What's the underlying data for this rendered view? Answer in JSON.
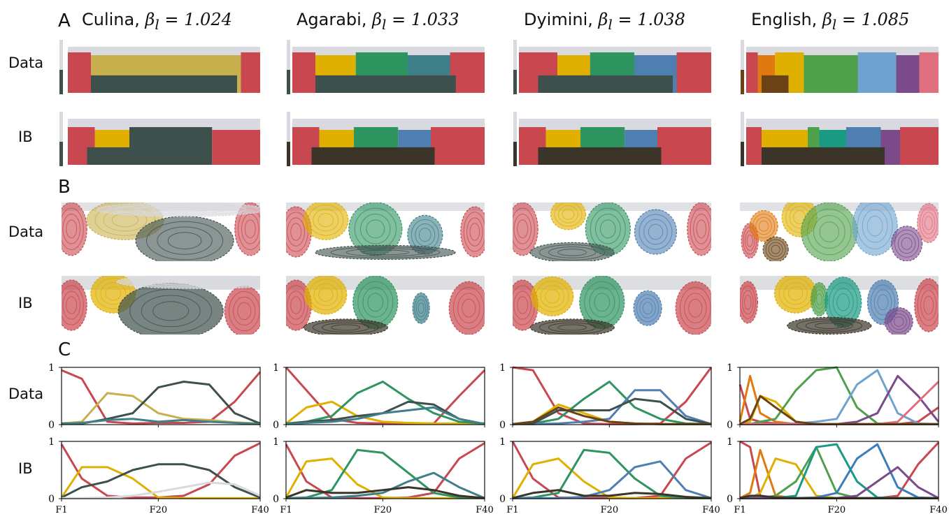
{
  "panel_letters": [
    "A",
    "B",
    "C"
  ],
  "row_labels": {
    "data": "Data",
    "ib": "IB"
  },
  "languages": [
    {
      "name": "Culina",
      "beta_symbol": "β",
      "beta_sub": "l",
      "beta_value": "1.024"
    },
    {
      "name": "Agarabi",
      "beta_symbol": "β",
      "beta_sub": "l",
      "beta_value": "1.033"
    },
    {
      "name": "Dyimini",
      "beta_symbol": "β",
      "beta_sub": "l",
      "beta_value": "1.038"
    },
    {
      "name": "English",
      "beta_symbol": "β",
      "beta_sub": "l",
      "beta_value": "1.085"
    }
  ],
  "colors": {
    "red": "#c9484f",
    "yellow": "#e0b000",
    "olive": "#c9b04f",
    "darkslate": "#3e504c",
    "green": "#2e9460",
    "teal": "#3f7f8a",
    "blue": "#4f7fb0",
    "lightblue": "#6ea3cf",
    "orange": "#e07a10",
    "brown": "#6b4215",
    "purple": "#7a4a8a",
    "pink": "#e07080",
    "grey": "#d8dadf",
    "darkbrown": "#3a3528",
    "salmon": "#f5b49a",
    "vgreen": "#4fa04a",
    "tealb": "#1a9a82"
  },
  "chart_data": [
    {
      "type": "line",
      "language": "Culina",
      "row": "Data",
      "x": [
        1,
        5,
        10,
        15,
        20,
        25,
        30,
        35,
        40
      ],
      "xticks": [
        "F1",
        "F20",
        "F40"
      ],
      "yticks": [
        "0",
        "1"
      ],
      "ylim": [
        0,
        1
      ],
      "series": [
        {
          "color": "#c9484f",
          "values": [
            0.95,
            0.8,
            0.05,
            0.02,
            0.03,
            0.03,
            0.05,
            0.4,
            0.92
          ]
        },
        {
          "color": "#c9b04f",
          "values": [
            0.02,
            0.05,
            0.55,
            0.5,
            0.2,
            0.1,
            0.08,
            0.04,
            0.02
          ]
        },
        {
          "color": "#3e504c",
          "values": [
            0.02,
            0.02,
            0.1,
            0.2,
            0.65,
            0.75,
            0.7,
            0.2,
            0.02
          ]
        },
        {
          "color": "#3f7f8a",
          "values": [
            0.01,
            0.03,
            0.08,
            0.1,
            0.05,
            0.08,
            0.05,
            0.03,
            0.01
          ]
        }
      ]
    },
    {
      "type": "line",
      "language": "Culina",
      "row": "IB",
      "x": [
        1,
        5,
        10,
        15,
        20,
        25,
        30,
        35,
        40
      ],
      "xticks": [
        "F1",
        "F20",
        "F40"
      ],
      "yticks": [
        "0",
        "1"
      ],
      "ylim": [
        0,
        1
      ],
      "series": [
        {
          "color": "#c9484f",
          "values": [
            0.95,
            0.35,
            0.05,
            0.02,
            0.02,
            0.05,
            0.25,
            0.75,
            0.97
          ]
        },
        {
          "color": "#e0b000",
          "values": [
            0.02,
            0.55,
            0.55,
            0.35,
            0.02,
            0.01,
            0.01,
            0.01,
            0.01
          ]
        },
        {
          "color": "#3e504c",
          "values": [
            0.02,
            0.2,
            0.3,
            0.5,
            0.6,
            0.6,
            0.5,
            0.2,
            0.02
          ]
        },
        {
          "color": "#d8dadf",
          "values": [
            0.01,
            0.01,
            0.02,
            0.05,
            0.12,
            0.2,
            0.28,
            0.25,
            0.05
          ]
        }
      ]
    },
    {
      "type": "line",
      "language": "Agarabi",
      "row": "Data",
      "x": [
        1,
        5,
        10,
        15,
        20,
        25,
        30,
        35,
        40
      ],
      "xticks": [
        "F1",
        "F20",
        "F40"
      ],
      "yticks": [
        "0",
        "1"
      ],
      "ylim": [
        0,
        1
      ],
      "series": [
        {
          "color": "#c9484f",
          "values": [
            1.0,
            0.6,
            0.1,
            0.03,
            0.02,
            0.02,
            0.02,
            0.5,
            0.95
          ]
        },
        {
          "color": "#e0b000",
          "values": [
            0.02,
            0.3,
            0.4,
            0.15,
            0.05,
            0.03,
            0.02,
            0.02,
            0.02
          ]
        },
        {
          "color": "#2e9460",
          "values": [
            0.02,
            0.05,
            0.15,
            0.55,
            0.75,
            0.45,
            0.2,
            0.05,
            0.02
          ]
        },
        {
          "color": "#3e504c",
          "values": [
            0.01,
            0.05,
            0.08,
            0.15,
            0.2,
            0.4,
            0.35,
            0.1,
            0.01
          ]
        },
        {
          "color": "#3f7f8a",
          "values": [
            0.01,
            0.03,
            0.05,
            0.1,
            0.2,
            0.25,
            0.3,
            0.1,
            0.01
          ]
        }
      ]
    },
    {
      "type": "line",
      "language": "Agarabi",
      "row": "IB",
      "x": [
        1,
        5,
        10,
        15,
        20,
        25,
        30,
        35,
        40
      ],
      "xticks": [
        "F1",
        "F20",
        "F40"
      ],
      "yticks": [
        "0",
        "1"
      ],
      "ylim": [
        0,
        1
      ],
      "series": [
        {
          "color": "#c9484f",
          "values": [
            0.95,
            0.3,
            0.02,
            0.01,
            0.01,
            0.02,
            0.1,
            0.7,
            0.97
          ]
        },
        {
          "color": "#e0b000",
          "values": [
            0.02,
            0.65,
            0.7,
            0.25,
            0.02,
            0.01,
            0.01,
            0.01,
            0.01
          ]
        },
        {
          "color": "#2e9460",
          "values": [
            0.01,
            0.02,
            0.15,
            0.85,
            0.8,
            0.45,
            0.1,
            0.02,
            0.01
          ]
        },
        {
          "color": "#3f7f8a",
          "values": [
            0.01,
            0.01,
            0.02,
            0.05,
            0.1,
            0.3,
            0.45,
            0.2,
            0.01
          ]
        },
        {
          "color": "#3a3528",
          "values": [
            0.02,
            0.15,
            0.1,
            0.1,
            0.15,
            0.2,
            0.15,
            0.05,
            0.01
          ]
        }
      ]
    },
    {
      "type": "line",
      "language": "Dyimini",
      "row": "Data",
      "x": [
        1,
        5,
        10,
        15,
        20,
        25,
        30,
        35,
        40
      ],
      "xticks": [
        "F1",
        "F20",
        "F40"
      ],
      "yticks": [
        "0",
        "1"
      ],
      "ylim": [
        0,
        1
      ],
      "series": [
        {
          "color": "#c9484f",
          "values": [
            1.0,
            0.95,
            0.2,
            0.02,
            0.01,
            0.01,
            0.02,
            0.4,
            1.0
          ]
        },
        {
          "color": "#e0b000",
          "values": [
            0.01,
            0.05,
            0.35,
            0.2,
            0.05,
            0.02,
            0.01,
            0.01,
            0.01
          ]
        },
        {
          "color": "#2e9460",
          "values": [
            0.01,
            0.02,
            0.1,
            0.45,
            0.75,
            0.3,
            0.1,
            0.02,
            0.01
          ]
        },
        {
          "color": "#4f7fb0",
          "values": [
            0.01,
            0.01,
            0.02,
            0.05,
            0.1,
            0.6,
            0.6,
            0.15,
            0.01
          ]
        },
        {
          "color": "#3e504c",
          "values": [
            0.01,
            0.02,
            0.25,
            0.25,
            0.25,
            0.45,
            0.4,
            0.1,
            0.01
          ]
        },
        {
          "color": "#6b4215",
          "values": [
            0.01,
            0.05,
            0.3,
            0.15,
            0.05,
            0.02,
            0.01,
            0.01,
            0.01
          ]
        }
      ]
    },
    {
      "type": "line",
      "language": "Dyimini",
      "row": "IB",
      "x": [
        1,
        5,
        10,
        15,
        20,
        25,
        30,
        35,
        40
      ],
      "xticks": [
        "F1",
        "F20",
        "F40"
      ],
      "yticks": [
        "0",
        "1"
      ],
      "ylim": [
        0,
        1
      ],
      "series": [
        {
          "color": "#c9484f",
          "values": [
            1.0,
            0.35,
            0.02,
            0.01,
            0.01,
            0.01,
            0.05,
            0.7,
            0.98
          ]
        },
        {
          "color": "#e0b000",
          "values": [
            0.01,
            0.6,
            0.7,
            0.3,
            0.02,
            0.01,
            0.01,
            0.01,
            0.01
          ]
        },
        {
          "color": "#2e9460",
          "values": [
            0.01,
            0.02,
            0.1,
            0.85,
            0.8,
            0.35,
            0.05,
            0.01,
            0.01
          ]
        },
        {
          "color": "#4f7fb0",
          "values": [
            0.01,
            0.01,
            0.01,
            0.03,
            0.15,
            0.55,
            0.65,
            0.15,
            0.01
          ]
        },
        {
          "color": "#3a3528",
          "values": [
            0.01,
            0.1,
            0.15,
            0.05,
            0.05,
            0.1,
            0.08,
            0.03,
            0.01
          ]
        }
      ]
    },
    {
      "type": "line",
      "language": "English",
      "row": "Data",
      "x": [
        1,
        3,
        5,
        8,
        12,
        16,
        20,
        24,
        28,
        32,
        36,
        40
      ],
      "xticks": [
        "F1",
        "F20",
        "F40"
      ],
      "yticks": [
        "0",
        "1"
      ],
      "ylim": [
        0,
        1
      ],
      "series": [
        {
          "color": "#c9484f",
          "values": [
            0.7,
            0.1,
            0.05,
            0.02,
            0.01,
            0.01,
            0.01,
            0.01,
            0.01,
            0.01,
            0.05,
            0.3
          ]
        },
        {
          "color": "#e07a10",
          "values": [
            0.05,
            0.85,
            0.2,
            0.05,
            0.01,
            0.01,
            0.01,
            0.01,
            0.01,
            0.01,
            0.01,
            0.01
          ]
        },
        {
          "color": "#e0b000",
          "values": [
            0.01,
            0.05,
            0.5,
            0.4,
            0.05,
            0.01,
            0.01,
            0.01,
            0.01,
            0.01,
            0.01,
            0.01
          ]
        },
        {
          "color": "#4fa04a",
          "values": [
            0.01,
            0.01,
            0.05,
            0.1,
            0.6,
            0.95,
            1.0,
            0.3,
            0.02,
            0.01,
            0.01,
            0.01
          ]
        },
        {
          "color": "#6ea3cf",
          "values": [
            0.01,
            0.01,
            0.01,
            0.01,
            0.02,
            0.05,
            0.1,
            0.7,
            0.95,
            0.2,
            0.02,
            0.01
          ]
        },
        {
          "color": "#7a4a8a",
          "values": [
            0.01,
            0.01,
            0.01,
            0.01,
            0.01,
            0.01,
            0.01,
            0.05,
            0.2,
            0.85,
            0.5,
            0.05
          ]
        },
        {
          "color": "#e07080",
          "values": [
            0.01,
            0.01,
            0.01,
            0.01,
            0.01,
            0.01,
            0.01,
            0.01,
            0.01,
            0.05,
            0.4,
            0.75
          ]
        },
        {
          "color": "#6b4215",
          "values": [
            0.01,
            0.1,
            0.5,
            0.3,
            0.05,
            0.01,
            0.01,
            0.01,
            0.01,
            0.01,
            0.01,
            0.01
          ]
        }
      ]
    },
    {
      "type": "line",
      "language": "English",
      "row": "IB",
      "x": [
        1,
        3,
        5,
        8,
        12,
        16,
        20,
        24,
        28,
        32,
        36,
        40
      ],
      "xticks": [
        "F1",
        "F20",
        "F40"
      ],
      "yticks": [
        "0",
        "1"
      ],
      "ylim": [
        0,
        1
      ],
      "series": [
        {
          "color": "#c9484f",
          "values": [
            1.0,
            0.9,
            0.05,
            0.01,
            0.01,
            0.01,
            0.01,
            0.01,
            0.01,
            0.05,
            0.6,
            0.98
          ]
        },
        {
          "color": "#e07a10",
          "values": [
            0.01,
            0.1,
            0.85,
            0.05,
            0.01,
            0.01,
            0.01,
            0.01,
            0.01,
            0.01,
            0.01,
            0.01
          ]
        },
        {
          "color": "#e0b000",
          "values": [
            0.01,
            0.01,
            0.1,
            0.7,
            0.6,
            0.05,
            0.01,
            0.01,
            0.01,
            0.01,
            0.01,
            0.01
          ]
        },
        {
          "color": "#4fa04a",
          "values": [
            0.01,
            0.01,
            0.01,
            0.05,
            0.3,
            0.9,
            0.1,
            0.01,
            0.01,
            0.01,
            0.01,
            0.01
          ]
        },
        {
          "color": "#1a9a82",
          "values": [
            0.01,
            0.01,
            0.01,
            0.01,
            0.05,
            0.9,
            0.95,
            0.3,
            0.02,
            0.01,
            0.01,
            0.01
          ]
        },
        {
          "color": "#3a7fba",
          "values": [
            0.01,
            0.01,
            0.01,
            0.01,
            0.01,
            0.02,
            0.1,
            0.7,
            0.95,
            0.2,
            0.02,
            0.01
          ]
        },
        {
          "color": "#7a4a8a",
          "values": [
            0.01,
            0.01,
            0.01,
            0.01,
            0.01,
            0.01,
            0.01,
            0.05,
            0.3,
            0.55,
            0.2,
            0.01
          ]
        },
        {
          "color": "#3a3528",
          "values": [
            0.01,
            0.05,
            0.05,
            0.02,
            0.01,
            0.01,
            0.01,
            0.01,
            0.01,
            0.01,
            0.01,
            0.01
          ]
        }
      ]
    }
  ]
}
